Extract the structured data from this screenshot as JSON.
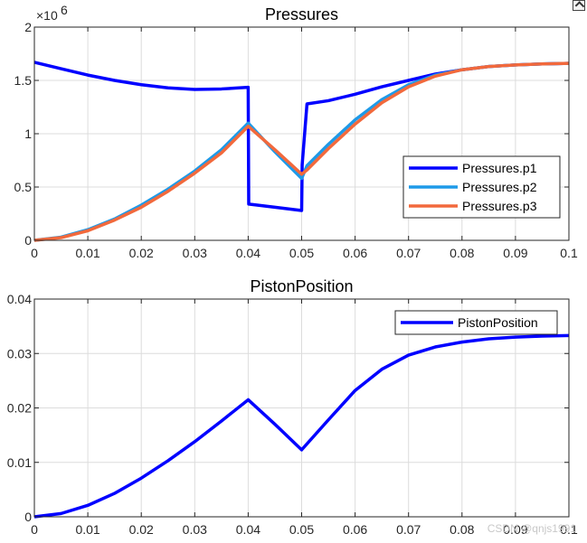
{
  "chart_data": [
    {
      "type": "line",
      "title": "Pressures",
      "exponent_label": "×10",
      "exponent_power": "6",
      "xlim": [
        0,
        0.1
      ],
      "ylim": [
        0,
        2
      ],
      "xticks": [
        0,
        0.01,
        0.02,
        0.03,
        0.04,
        0.05,
        0.06,
        0.07,
        0.08,
        0.09,
        0.1
      ],
      "xtick_labels": [
        "0",
        "0.01",
        "0.02",
        "0.03",
        "0.04",
        "0.05",
        "0.06",
        "0.07",
        "0.08",
        "0.09",
        "0.1"
      ],
      "yticks": [
        0,
        0.5,
        1,
        1.5,
        2
      ],
      "ytick_labels": [
        "0",
        "0.5",
        "1",
        "1.5",
        "2"
      ],
      "grid": true,
      "legend_position": "right-middle",
      "series": [
        {
          "name": "Pressures.p1",
          "color": "#0000ff",
          "points": [
            [
              0,
              1.67
            ],
            [
              0.005,
              1.61
            ],
            [
              0.01,
              1.55
            ],
            [
              0.015,
              1.5
            ],
            [
              0.02,
              1.46
            ],
            [
              0.025,
              1.43
            ],
            [
              0.03,
              1.415
            ],
            [
              0.035,
              1.42
            ],
            [
              0.04,
              1.435
            ],
            [
              0.0401,
              0.34
            ],
            [
              0.045,
              0.31
            ],
            [
              0.05,
              0.28
            ],
            [
              0.0501,
              0.71
            ],
            [
              0.051,
              1.28
            ],
            [
              0.055,
              1.31
            ],
            [
              0.06,
              1.37
            ],
            [
              0.065,
              1.44
            ],
            [
              0.07,
              1.5
            ],
            [
              0.075,
              1.56
            ],
            [
              0.08,
              1.6
            ],
            [
              0.085,
              1.63
            ],
            [
              0.09,
              1.645
            ],
            [
              0.095,
              1.655
            ],
            [
              0.1,
              1.66
            ]
          ]
        },
        {
          "name": "Pressures.p2",
          "color": "#1e9ae8",
          "points": [
            [
              0,
              0
            ],
            [
              0.005,
              0.03
            ],
            [
              0.01,
              0.1
            ],
            [
              0.015,
              0.2
            ],
            [
              0.02,
              0.33
            ],
            [
              0.025,
              0.48
            ],
            [
              0.03,
              0.65
            ],
            [
              0.035,
              0.85
            ],
            [
              0.04,
              1.1
            ],
            [
              0.045,
              0.83
            ],
            [
              0.05,
              0.58
            ],
            [
              0.051,
              0.7
            ],
            [
              0.055,
              0.9
            ],
            [
              0.06,
              1.13
            ],
            [
              0.065,
              1.32
            ],
            [
              0.07,
              1.46
            ],
            [
              0.075,
              1.55
            ],
            [
              0.08,
              1.6
            ],
            [
              0.085,
              1.63
            ],
            [
              0.09,
              1.645
            ],
            [
              0.095,
              1.655
            ],
            [
              0.1,
              1.66
            ]
          ]
        },
        {
          "name": "Pressures.p3",
          "color": "#f2693c",
          "points": [
            [
              0,
              0
            ],
            [
              0.005,
              0.025
            ],
            [
              0.01,
              0.09
            ],
            [
              0.015,
              0.19
            ],
            [
              0.02,
              0.31
            ],
            [
              0.025,
              0.46
            ],
            [
              0.03,
              0.63
            ],
            [
              0.035,
              0.82
            ],
            [
              0.04,
              1.07
            ],
            [
              0.045,
              0.85
            ],
            [
              0.05,
              0.62
            ],
            [
              0.051,
              0.66
            ],
            [
              0.055,
              0.86
            ],
            [
              0.06,
              1.09
            ],
            [
              0.065,
              1.29
            ],
            [
              0.07,
              1.44
            ],
            [
              0.075,
              1.54
            ],
            [
              0.08,
              1.6
            ],
            [
              0.085,
              1.63
            ],
            [
              0.09,
              1.645
            ],
            [
              0.095,
              1.655
            ],
            [
              0.1,
              1.66
            ]
          ]
        }
      ]
    },
    {
      "type": "line",
      "title": "PistonPosition",
      "xlim": [
        0,
        0.1
      ],
      "ylim": [
        0,
        0.04
      ],
      "xticks": [
        0,
        0.01,
        0.02,
        0.03,
        0.04,
        0.05,
        0.06,
        0.07,
        0.08,
        0.09,
        0.1
      ],
      "xtick_labels": [
        "0",
        "0.01",
        "0.02",
        "0.03",
        "0.04",
        "0.05",
        "0.06",
        "0.07",
        "0.08",
        "0.09",
        "0.1"
      ],
      "yticks": [
        0,
        0.01,
        0.02,
        0.03,
        0.04
      ],
      "ytick_labels": [
        "0",
        "0.01",
        "0.02",
        "0.03",
        "0.04"
      ],
      "grid": true,
      "legend_position": "top-right",
      "series": [
        {
          "name": "PistonPosition",
          "color": "#0000ff",
          "points": [
            [
              0,
              0
            ],
            [
              0.005,
              0.0006
            ],
            [
              0.01,
              0.0021
            ],
            [
              0.015,
              0.0043
            ],
            [
              0.02,
              0.0071
            ],
            [
              0.025,
              0.0103
            ],
            [
              0.03,
              0.0138
            ],
            [
              0.035,
              0.0176
            ],
            [
              0.04,
              0.0215
            ],
            [
              0.045,
              0.017
            ],
            [
              0.05,
              0.0123
            ],
            [
              0.055,
              0.0178
            ],
            [
              0.06,
              0.0232
            ],
            [
              0.065,
              0.0271
            ],
            [
              0.07,
              0.0297
            ],
            [
              0.075,
              0.0312
            ],
            [
              0.08,
              0.0321
            ],
            [
              0.085,
              0.0327
            ],
            [
              0.09,
              0.033
            ],
            [
              0.095,
              0.0332
            ],
            [
              0.1,
              0.0333
            ]
          ]
        }
      ]
    }
  ],
  "watermark": "CSDN @qnjs1991"
}
